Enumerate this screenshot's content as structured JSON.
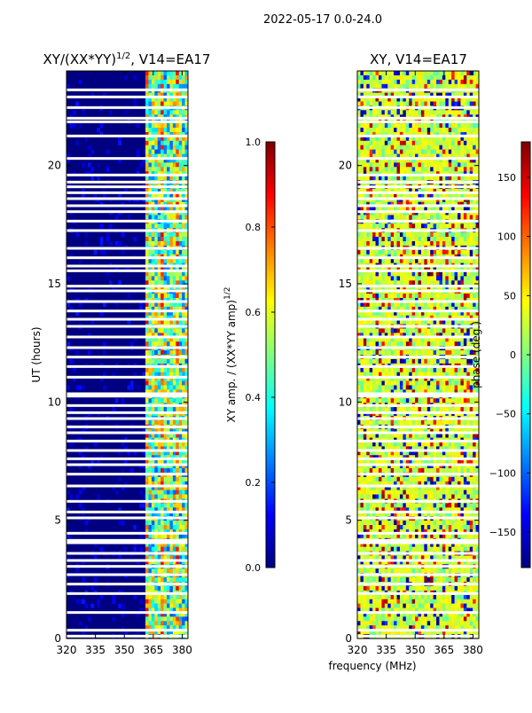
{
  "figure": {
    "suptitle": "2022-05-17 0.0-24.0",
    "xlabel_shared": "frequency (MHz)"
  },
  "colors": {
    "jet": [
      "#000080",
      "#0000ff",
      "#0080ff",
      "#00ffff",
      "#80ff80",
      "#ffff00",
      "#ff8000",
      "#ff0000",
      "#800000"
    ],
    "background": "#000080",
    "flag": "#ffffff"
  },
  "chart_data": [
    {
      "type": "heatmap",
      "title_main": "XY/(XX*YY)",
      "title_sup": "1/2",
      "title_rest": ", V14=EA17",
      "xlabel": "",
      "ylabel": "UT (hours)",
      "xlim": [
        320,
        383
      ],
      "ylim": [
        0,
        24
      ],
      "xticks": [
        320,
        335,
        350,
        365,
        380
      ],
      "xtick_labels": [
        "320",
        "335",
        "350",
        "365",
        "380"
      ],
      "yticks": [
        0,
        5,
        10,
        15,
        20
      ],
      "ytick_labels": [
        "0",
        "5",
        "10",
        "15",
        "20"
      ],
      "colorbar": {
        "label": "XY amp. / (XX*YY amp)",
        "label_sup": "1/2",
        "range": [
          0.0,
          1.0
        ],
        "ticks": [
          0.0,
          0.2,
          0.4,
          0.6,
          0.8,
          1.0
        ],
        "tick_labels": [
          "0.0",
          "0.2",
          "0.4",
          "0.6",
          "0.8",
          "1.0"
        ]
      },
      "signal_band_mhz": [
        361,
        383
      ],
      "note": "Low amplitude (~0.05) below 361 MHz; bright striped emission 0.3-0.8 between 361-383 MHz"
    },
    {
      "type": "heatmap",
      "title": "XY, V14=EA17",
      "xlabel": "frequency (MHz)",
      "ylabel": "",
      "xlim": [
        320,
        383
      ],
      "ylim": [
        0,
        24
      ],
      "xticks": [
        320,
        335,
        350,
        365,
        380
      ],
      "xtick_labels": [
        "320",
        "335",
        "350",
        "365",
        "380"
      ],
      "yticks": [
        0,
        5,
        10,
        15,
        20
      ],
      "ytick_labels": [
        "0",
        "5",
        "10",
        "15",
        "20"
      ],
      "colorbar": {
        "label": "phase (deg.)",
        "range": [
          -180,
          180
        ],
        "ticks": [
          -150,
          -100,
          -50,
          0,
          50,
          100,
          150
        ],
        "tick_labels": [
          "−150",
          "−100",
          "−50",
          "0",
          "50",
          "100",
          "150"
        ]
      },
      "note": "Phase mostly 0-60 deg (yellow/green) with scattered +/-180 wraps"
    }
  ],
  "flagged_ut_hours": [
    0.1,
    0.35,
    1.1,
    1.9,
    2.3,
    2.7,
    3.05,
    3.3,
    3.6,
    4.05,
    4.15,
    4.45,
    5.1,
    5.35,
    5.8,
    6.45,
    6.95,
    7.35,
    7.6,
    7.95,
    8.35,
    8.7,
    8.95,
    9.3,
    9.55,
    9.85,
    10.25,
    10.35,
    11.05,
    11.5,
    11.9,
    12.3,
    12.75,
    13.2,
    13.5,
    13.85,
    14.25,
    14.7,
    14.9,
    15.55,
    15.75,
    16.1,
    16.5,
    17.25,
    17.65,
    18.05,
    18.3,
    18.6,
    18.85,
    19.1,
    19.3,
    19.6,
    20.3,
    21.25,
    21.85,
    22.0,
    22.45,
    22.9,
    23.2
  ]
}
